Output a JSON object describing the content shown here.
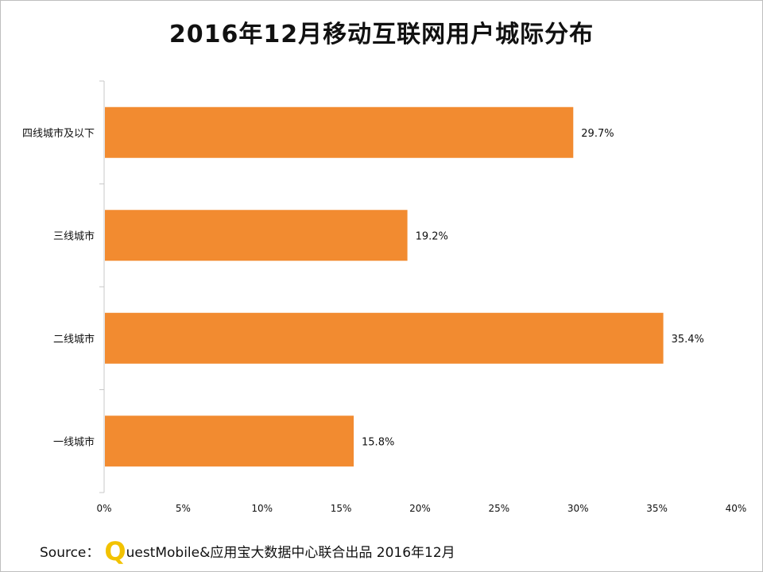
{
  "title": "2016年12月移动互联网用户城际分布",
  "source": {
    "prefix": "Source：",
    "logo_letter": "Q",
    "text": "uestMobile&应用宝大数据中心联合出品 2016年12月"
  },
  "colors": {
    "bar": "#F28B30",
    "axis": "#c8c8c8",
    "text": "#111111"
  },
  "chart_data": {
    "type": "bar",
    "orientation": "horizontal",
    "title": "2016年12月移动互联网用户城际分布",
    "categories": [
      "四线城市及以下",
      "三线城市",
      "二线城市",
      "一线城市"
    ],
    "values": [
      29.7,
      19.2,
      35.4,
      15.8
    ],
    "value_labels": [
      "29.7%",
      "19.2%",
      "35.4%",
      "15.8%"
    ],
    "xlim": [
      0,
      40
    ],
    "xticks": [
      "0%",
      "5%",
      "10%",
      "15%",
      "20%",
      "25%",
      "30%",
      "35%",
      "40%"
    ],
    "grid": false,
    "legend": "none"
  }
}
